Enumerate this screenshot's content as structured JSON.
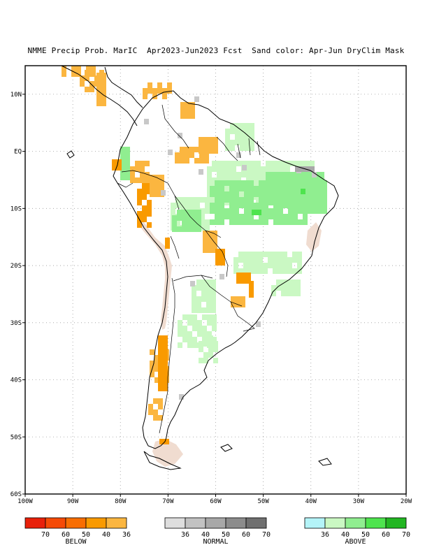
{
  "title": "NMME Precip Prob. MarIC  Apr2023-Jun2023 Fcst  Sand color: Apr-Jun DryClim Mask",
  "map": {
    "lon_range": [
      -100,
      -20
    ],
    "lat_range": [
      -60,
      15
    ],
    "lat_ticks": [
      {
        "value": 10,
        "label": "10N"
      },
      {
        "value": 0,
        "label": "EQ"
      },
      {
        "value": -10,
        "label": "10S"
      },
      {
        "value": -20,
        "label": "20S"
      },
      {
        "value": -30,
        "label": "30S"
      },
      {
        "value": -40,
        "label": "40S"
      },
      {
        "value": -50,
        "label": "50S"
      },
      {
        "value": -60,
        "label": "60S"
      }
    ],
    "lon_ticks": [
      {
        "value": -100,
        "label": "100W"
      },
      {
        "value": -90,
        "label": "90W"
      },
      {
        "value": -80,
        "label": "80W"
      },
      {
        "value": -70,
        "label": "70W"
      },
      {
        "value": -60,
        "label": "60W"
      },
      {
        "value": -50,
        "label": "50W"
      },
      {
        "value": -40,
        "label": "40W"
      },
      {
        "value": -30,
        "label": "30W"
      },
      {
        "value": -20,
        "label": "20W"
      }
    ],
    "colors": {
      "below_36": "#fbb640",
      "below_40": "#f99a00",
      "normal_36": "#c8c8c8",
      "above_36": "#caf8c3",
      "above_40": "#90ee90",
      "dry_mask": "#f0dcd0"
    }
  },
  "legends": [
    {
      "name": "BELOW",
      "colors": [
        "#e8200a",
        "#f54a06",
        "#f86e02",
        "#f99a00",
        "#fbb640"
      ],
      "ticks": [
        "70",
        "60",
        "50",
        "40",
        "36"
      ]
    },
    {
      "name": "NORMAL",
      "colors": [
        "#dedede",
        "#c2c2c2",
        "#a8a8a8",
        "#8c8c8c",
        "#707070"
      ],
      "ticks": [
        "36",
        "40",
        "50",
        "60",
        "70"
      ]
    },
    {
      "name": "ABOVE",
      "colors": [
        "#b4f4f8",
        "#caf8c3",
        "#90ee90",
        "#4ee44e",
        "#22b622"
      ],
      "ticks": [
        "36",
        "40",
        "50",
        "60",
        "70"
      ]
    }
  ]
}
